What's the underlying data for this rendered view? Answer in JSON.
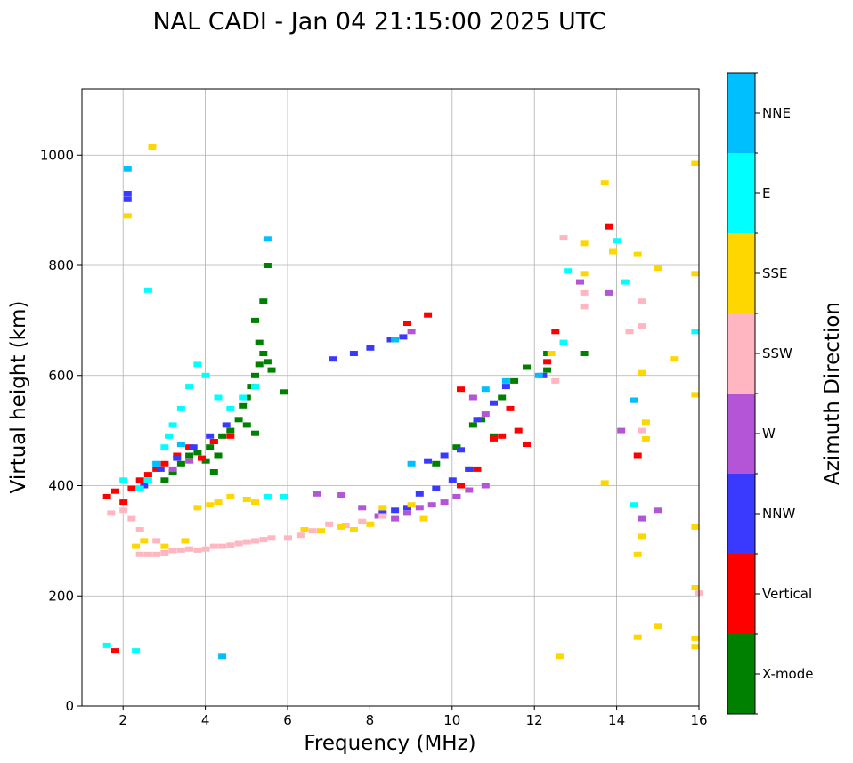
{
  "chart_data": {
    "type": "scatter",
    "title": "NAL CADI - Jan 04 21:15:00 2025 UTC",
    "xlabel": "Frequency (MHz)",
    "ylabel": "Virtual height (km)",
    "xlim": [
      1,
      16
    ],
    "ylim": [
      0,
      1120
    ],
    "xticks": [
      2,
      4,
      6,
      8,
      10,
      12,
      14,
      16
    ],
    "yticks": [
      0,
      200,
      400,
      600,
      800,
      1000
    ],
    "grid": true,
    "colorbar": {
      "label": "Azimuth Direction",
      "categories": [
        "X-mode",
        "Vertical",
        "NNW",
        "W",
        "SSW",
        "SSE",
        "E",
        "NNE"
      ],
      "colors": [
        "#008000",
        "#ff0000",
        "#3a3aff",
        "#b455d8",
        "#ffb6c1",
        "#ffd700",
        "#00ffff",
        "#00bfff"
      ]
    },
    "series": [
      {
        "name": "X-mode",
        "points": [
          [
            3.0,
            410
          ],
          [
            3.2,
            425
          ],
          [
            3.4,
            440
          ],
          [
            3.6,
            455
          ],
          [
            3.8,
            460
          ],
          [
            4.0,
            445
          ],
          [
            4.1,
            470
          ],
          [
            4.2,
            480
          ],
          [
            4.3,
            455
          ],
          [
            4.4,
            490
          ],
          [
            4.2,
            425
          ],
          [
            4.6,
            500
          ],
          [
            4.8,
            520
          ],
          [
            4.9,
            545
          ],
          [
            5.0,
            560
          ],
          [
            5.1,
            580
          ],
          [
            5.2,
            600
          ],
          [
            5.3,
            620
          ],
          [
            5.3,
            660
          ],
          [
            5.4,
            640
          ],
          [
            5.5,
            625
          ],
          [
            5.6,
            610
          ],
          [
            5.2,
            700
          ],
          [
            5.4,
            735
          ],
          [
            5.5,
            800
          ],
          [
            5.9,
            570
          ],
          [
            5.0,
            510
          ],
          [
            5.2,
            495
          ],
          [
            10.1,
            470
          ],
          [
            10.5,
            510
          ],
          [
            10.7,
            520
          ],
          [
            11.0,
            490
          ],
          [
            11.2,
            560
          ],
          [
            11.5,
            590
          ],
          [
            11.8,
            615
          ],
          [
            12.3,
            640
          ],
          [
            12.3,
            610
          ],
          [
            10.4,
            430
          ],
          [
            9.6,
            440
          ],
          [
            13.2,
            640
          ]
        ]
      },
      {
        "name": "Vertical",
        "points": [
          [
            1.6,
            380
          ],
          [
            1.8,
            390
          ],
          [
            2.0,
            370
          ],
          [
            2.2,
            395
          ],
          [
            2.4,
            410
          ],
          [
            2.6,
            420
          ],
          [
            2.8,
            430
          ],
          [
            3.0,
            440
          ],
          [
            3.3,
            455
          ],
          [
            3.6,
            470
          ],
          [
            3.9,
            450
          ],
          [
            4.2,
            480
          ],
          [
            4.6,
            490
          ],
          [
            1.8,
            100
          ],
          [
            8.9,
            695
          ],
          [
            9.4,
            710
          ],
          [
            10.2,
            400
          ],
          [
            10.2,
            575
          ],
          [
            10.6,
            430
          ],
          [
            11.0,
            485
          ],
          [
            11.2,
            490
          ],
          [
            11.4,
            540
          ],
          [
            11.6,
            500
          ],
          [
            11.8,
            475
          ],
          [
            12.5,
            680
          ],
          [
            12.3,
            625
          ],
          [
            13.8,
            870
          ],
          [
            14.5,
            455
          ]
        ]
      },
      {
        "name": "NNW",
        "points": [
          [
            2.1,
            920
          ],
          [
            2.1,
            930
          ],
          [
            2.5,
            400
          ],
          [
            2.9,
            430
          ],
          [
            3.3,
            450
          ],
          [
            3.7,
            470
          ],
          [
            4.1,
            490
          ],
          [
            4.5,
            510
          ],
          [
            7.1,
            630
          ],
          [
            7.6,
            640
          ],
          [
            8.0,
            650
          ],
          [
            8.5,
            665
          ],
          [
            8.8,
            670
          ],
          [
            8.3,
            350
          ],
          [
            8.6,
            355
          ],
          [
            8.9,
            360
          ],
          [
            9.2,
            385
          ],
          [
            9.6,
            395
          ],
          [
            10.0,
            410
          ],
          [
            10.4,
            430
          ],
          [
            9.4,
            445
          ],
          [
            9.8,
            455
          ],
          [
            10.2,
            465
          ],
          [
            10.6,
            520
          ],
          [
            11.0,
            550
          ],
          [
            11.3,
            580
          ],
          [
            12.2,
            600
          ],
          [
            14.4,
            555
          ]
        ]
      },
      {
        "name": "W",
        "points": [
          [
            3.2,
            430
          ],
          [
            3.6,
            445
          ],
          [
            6.7,
            385
          ],
          [
            7.3,
            383
          ],
          [
            7.8,
            360
          ],
          [
            8.2,
            345
          ],
          [
            8.6,
            340
          ],
          [
            8.9,
            350
          ],
          [
            9.2,
            360
          ],
          [
            9.5,
            365
          ],
          [
            9.8,
            370
          ],
          [
            10.1,
            380
          ],
          [
            10.4,
            392
          ],
          [
            10.8,
            400
          ],
          [
            10.8,
            530
          ],
          [
            10.5,
            560
          ],
          [
            9.0,
            680
          ],
          [
            13.1,
            770
          ],
          [
            13.8,
            750
          ],
          [
            14.1,
            500
          ],
          [
            15.0,
            355
          ],
          [
            14.6,
            340
          ]
        ]
      },
      {
        "name": "SSW",
        "points": [
          [
            2.4,
            275
          ],
          [
            2.6,
            275
          ],
          [
            2.8,
            275
          ],
          [
            3.0,
            278
          ],
          [
            3.2,
            282
          ],
          [
            3.4,
            283
          ],
          [
            3.6,
            285
          ],
          [
            3.8,
            283
          ],
          [
            4.0,
            285
          ],
          [
            4.2,
            290
          ],
          [
            4.4,
            290
          ],
          [
            4.6,
            292
          ],
          [
            4.8,
            295
          ],
          [
            5.0,
            298
          ],
          [
            5.2,
            300
          ],
          [
            5.4,
            302
          ],
          [
            5.6,
            305
          ],
          [
            6.0,
            305
          ],
          [
            6.3,
            310
          ],
          [
            6.6,
            318
          ],
          [
            7.0,
            330
          ],
          [
            7.4,
            328
          ],
          [
            7.8,
            335
          ],
          [
            8.3,
            345
          ],
          [
            1.7,
            350
          ],
          [
            2.0,
            355
          ],
          [
            2.2,
            340
          ],
          [
            2.4,
            320
          ],
          [
            2.8,
            300
          ],
          [
            12.7,
            850
          ],
          [
            13.2,
            725
          ],
          [
            13.2,
            750
          ],
          [
            14.3,
            680
          ],
          [
            14.6,
            690
          ],
          [
            14.6,
            735
          ],
          [
            14.6,
            500
          ],
          [
            16.0,
            205
          ],
          [
            12.5,
            590
          ]
        ]
      },
      {
        "name": "SSE",
        "points": [
          [
            2.3,
            290
          ],
          [
            2.5,
            300
          ],
          [
            3.0,
            290
          ],
          [
            3.5,
            300
          ],
          [
            3.8,
            360
          ],
          [
            4.1,
            365
          ],
          [
            4.3,
            370
          ],
          [
            4.6,
            380
          ],
          [
            5.0,
            375
          ],
          [
            5.2,
            370
          ],
          [
            6.4,
            320
          ],
          [
            6.8,
            318
          ],
          [
            7.3,
            325
          ],
          [
            7.6,
            320
          ],
          [
            8.0,
            330
          ],
          [
            8.3,
            360
          ],
          [
            9.0,
            365
          ],
          [
            9.3,
            340
          ],
          [
            12.4,
            640
          ],
          [
            12.6,
            90
          ],
          [
            13.2,
            840
          ],
          [
            13.2,
            785
          ],
          [
            13.7,
            950
          ],
          [
            13.7,
            405
          ],
          [
            13.9,
            825
          ],
          [
            14.5,
            820
          ],
          [
            14.6,
            605
          ],
          [
            14.7,
            515
          ],
          [
            14.7,
            485
          ],
          [
            14.6,
            308
          ],
          [
            14.5,
            275
          ],
          [
            15.0,
            795
          ],
          [
            15.4,
            630
          ],
          [
            15.9,
            985
          ],
          [
            15.9,
            785
          ],
          [
            15.9,
            565
          ],
          [
            15.9,
            325
          ],
          [
            15.9,
            215
          ],
          [
            15.9,
            123
          ],
          [
            15.9,
            108
          ],
          [
            14.5,
            125
          ],
          [
            15.0,
            145
          ],
          [
            2.7,
            1015
          ],
          [
            2.1,
            890
          ]
        ]
      },
      {
        "name": "E",
        "points": [
          [
            2.0,
            410
          ],
          [
            2.4,
            395
          ],
          [
            2.6,
            410
          ],
          [
            2.8,
            440
          ],
          [
            3.0,
            470
          ],
          [
            3.1,
            490
          ],
          [
            3.2,
            510
          ],
          [
            3.4,
            540
          ],
          [
            3.6,
            580
          ],
          [
            3.8,
            620
          ],
          [
            4.0,
            600
          ],
          [
            4.3,
            560
          ],
          [
            4.6,
            540
          ],
          [
            4.9,
            560
          ],
          [
            5.2,
            580
          ],
          [
            2.6,
            755
          ],
          [
            1.6,
            110
          ],
          [
            2.3,
            100
          ],
          [
            5.5,
            380
          ],
          [
            5.9,
            380
          ],
          [
            12.7,
            660
          ],
          [
            12.8,
            790
          ],
          [
            14.0,
            845
          ],
          [
            14.2,
            770
          ],
          [
            14.4,
            365
          ],
          [
            15.9,
            680
          ]
        ]
      },
      {
        "name": "NNE",
        "points": [
          [
            2.1,
            975
          ],
          [
            5.5,
            848
          ],
          [
            2.8,
            440
          ],
          [
            3.4,
            475
          ],
          [
            10.8,
            575
          ],
          [
            11.3,
            590
          ],
          [
            12.1,
            600
          ],
          [
            8.6,
            665
          ],
          [
            9.0,
            440
          ],
          [
            14.4,
            555
          ],
          [
            4.4,
            90
          ]
        ]
      }
    ]
  }
}
